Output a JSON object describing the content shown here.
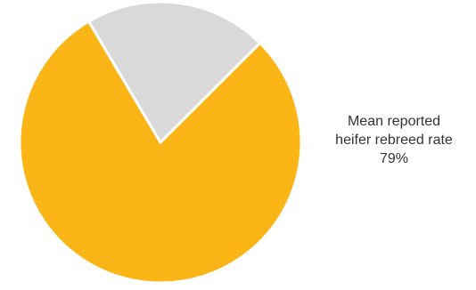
{
  "chart_data": {
    "type": "pie",
    "title": "",
    "slices": [
      {
        "value": 79,
        "color": "#FBB517"
      },
      {
        "value": 21,
        "color": "#D9D9D9"
      }
    ],
    "start_angle_deg": 45,
    "slice_border_color": "#FFFFFF",
    "annotation": {
      "line1": "Mean reported",
      "line2": "heifer rebreed rate",
      "line3": "79%"
    }
  }
}
